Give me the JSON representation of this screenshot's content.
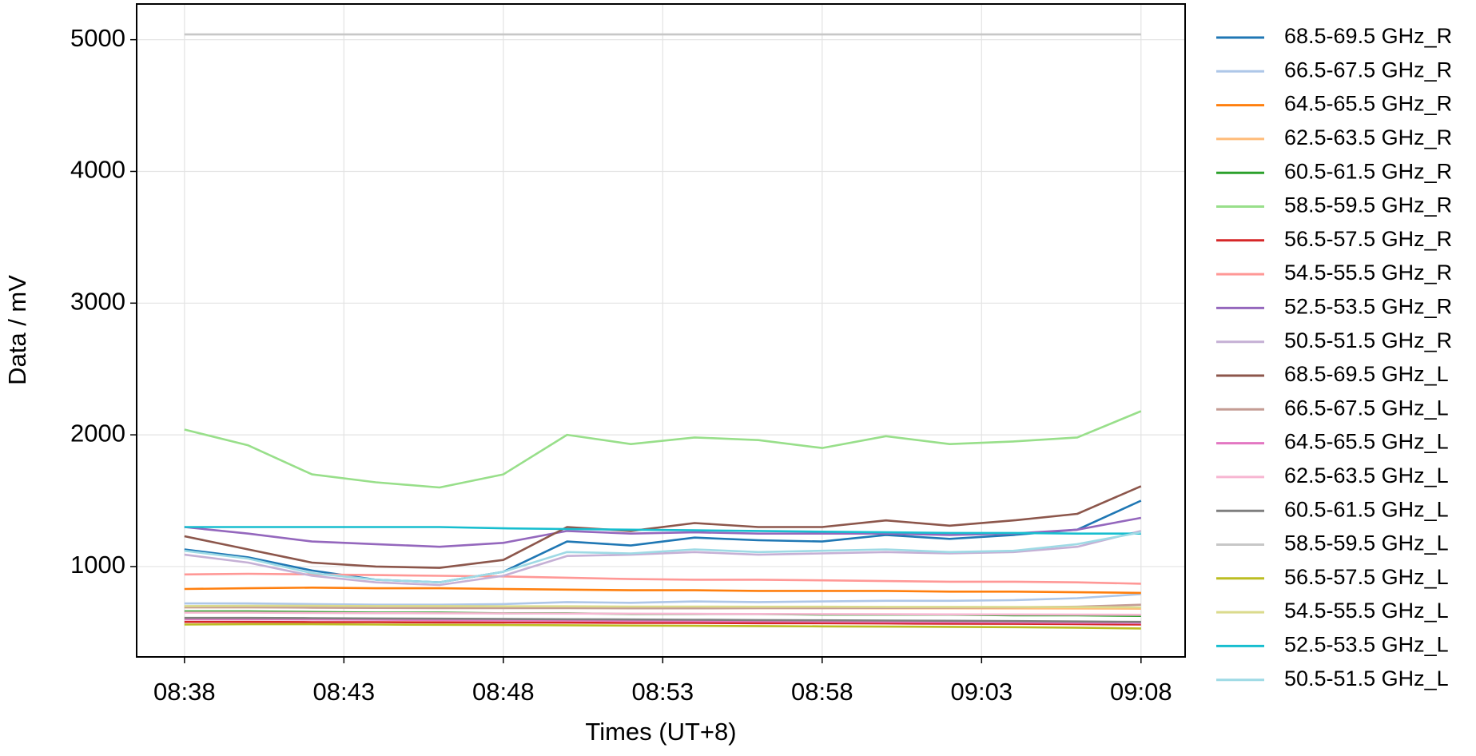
{
  "chart_data": {
    "type": "line",
    "xlabel": "Times (UT+8)",
    "ylabel": "Data / mV",
    "x": [
      "08:38",
      "08:40",
      "08:42",
      "08:44",
      "08:46",
      "08:48",
      "08:50",
      "08:52",
      "08:54",
      "08:56",
      "08:58",
      "09:00",
      "09:02",
      "09:04",
      "09:06",
      "09:08"
    ],
    "xlim": [
      "08:36:30",
      "09:09:23"
    ],
    "xticks": [
      "08:38",
      "08:43",
      "08:48",
      "08:53",
      "08:58",
      "09:03",
      "09:08"
    ],
    "ylim": [
      314,
      5271
    ],
    "yticks": [
      1000,
      2000,
      3000,
      4000,
      5000
    ],
    "grid": true,
    "legend": "outside right",
    "series": [
      {
        "name": "68.5-69.5 GHz_R",
        "color": "#1f77b4",
        "values": [
          1130,
          1070,
          970,
          900,
          880,
          960,
          1190,
          1160,
          1220,
          1200,
          1190,
          1240,
          1210,
          1240,
          1280,
          1500
        ]
      },
      {
        "name": "66.5-67.5 GHz_R",
        "color": "#aec7e8",
        "values": [
          720,
          720,
          715,
          710,
          710,
          715,
          730,
          725,
          735,
          730,
          735,
          740,
          740,
          745,
          760,
          790
        ]
      },
      {
        "name": "64.5-65.5 GHz_R",
        "color": "#ff7f0e",
        "values": [
          830,
          835,
          840,
          835,
          835,
          830,
          825,
          820,
          820,
          815,
          815,
          815,
          810,
          810,
          805,
          800
        ]
      },
      {
        "name": "62.5-63.5 GHz_R",
        "color": "#ffbb78",
        "values": [
          690,
          690,
          690,
          688,
          688,
          686,
          686,
          685,
          685,
          684,
          684,
          683,
          683,
          682,
          681,
          680
        ]
      },
      {
        "name": "60.5-61.5 GHz_R",
        "color": "#2ca02c",
        "values": [
          660,
          660,
          655,
          650,
          650,
          645,
          645,
          640,
          640,
          640,
          635,
          635,
          635,
          630,
          630,
          625
        ]
      },
      {
        "name": "58.5-59.5 GHz_R",
        "color": "#98df8a",
        "values": [
          2040,
          1920,
          1700,
          1640,
          1600,
          1700,
          2000,
          1930,
          1980,
          1960,
          1900,
          1990,
          1930,
          1950,
          1980,
          2180
        ]
      },
      {
        "name": "56.5-57.5 GHz_R",
        "color": "#d62728",
        "values": [
          580,
          580,
          578,
          578,
          576,
          575,
          574,
          572,
          572,
          570,
          570,
          568,
          566,
          565,
          563,
          560
        ]
      },
      {
        "name": "54.5-55.5 GHz_R",
        "color": "#ff9896",
        "values": [
          940,
          945,
          940,
          935,
          930,
          925,
          915,
          905,
          900,
          900,
          895,
          890,
          885,
          885,
          880,
          870
        ]
      },
      {
        "name": "52.5-53.5 GHz_R",
        "color": "#9467bd",
        "values": [
          1300,
          1250,
          1190,
          1170,
          1150,
          1180,
          1270,
          1250,
          1260,
          1250,
          1250,
          1250,
          1240,
          1250,
          1280,
          1370
        ]
      },
      {
        "name": "50.5-51.5 GHz_R",
        "color": "#c5b0d5",
        "values": [
          1090,
          1030,
          930,
          880,
          860,
          930,
          1080,
          1090,
          1110,
          1090,
          1100,
          1110,
          1100,
          1110,
          1150,
          1270
        ]
      },
      {
        "name": "68.5-69.5 GHz_L",
        "color": "#8c564b",
        "values": [
          1230,
          1130,
          1030,
          1000,
          990,
          1050,
          1300,
          1270,
          1330,
          1300,
          1300,
          1350,
          1310,
          1350,
          1400,
          1610
        ]
      },
      {
        "name": "66.5-67.5 GHz_L",
        "color": "#c49c94",
        "values": [
          690,
          690,
          688,
          686,
          685,
          684,
          684,
          683,
          683,
          684,
          685,
          686,
          688,
          690,
          695,
          710
        ]
      },
      {
        "name": "64.5-65.5 GHz_L",
        "color": "#e377c2",
        "values": [
          600,
          600,
          598,
          596,
          594,
          592,
          590,
          588,
          586,
          584,
          582,
          580,
          578,
          576,
          573,
          570
        ]
      },
      {
        "name": "62.5-63.5 GHz_L",
        "color": "#f7b6d2",
        "values": [
          650,
          650,
          648,
          646,
          645,
          644,
          643,
          642,
          641,
          640,
          639,
          638,
          637,
          636,
          635,
          634
        ]
      },
      {
        "name": "60.5-61.5 GHz_L",
        "color": "#7f7f7f",
        "values": [
          610,
          610,
          608,
          606,
          604,
          602,
          600,
          598,
          596,
          594,
          592,
          590,
          588,
          586,
          583,
          580
        ]
      },
      {
        "name": "58.5-59.5 GHz_L",
        "color": "#c7c7c7",
        "values": [
          5040,
          5040,
          5040,
          5040,
          5040,
          5040,
          5040,
          5040,
          5040,
          5040,
          5040,
          5040,
          5040,
          5040,
          5040,
          5040
        ]
      },
      {
        "name": "56.5-57.5 GHz_L",
        "color": "#bcbd22",
        "values": [
          560,
          562,
          562,
          560,
          558,
          556,
          554,
          552,
          550,
          548,
          546,
          544,
          542,
          540,
          536,
          530
        ]
      },
      {
        "name": "54.5-55.5 GHz_L",
        "color": "#dbdb8d",
        "values": [
          700,
          702,
          702,
          700,
          700,
          698,
          698,
          696,
          696,
          695,
          695,
          694,
          694,
          693,
          692,
          690
        ]
      },
      {
        "name": "52.5-53.5 GHz_L",
        "color": "#17becf",
        "values": [
          1300,
          1300,
          1300,
          1300,
          1300,
          1290,
          1285,
          1280,
          1275,
          1270,
          1265,
          1260,
          1255,
          1255,
          1250,
          1250
        ]
      },
      {
        "name": "50.5-51.5 GHz_L",
        "color": "#9edae5",
        "values": [
          1120,
          1060,
          950,
          900,
          880,
          960,
          1110,
          1100,
          1130,
          1110,
          1120,
          1130,
          1110,
          1120,
          1170,
          1260
        ]
      }
    ]
  }
}
